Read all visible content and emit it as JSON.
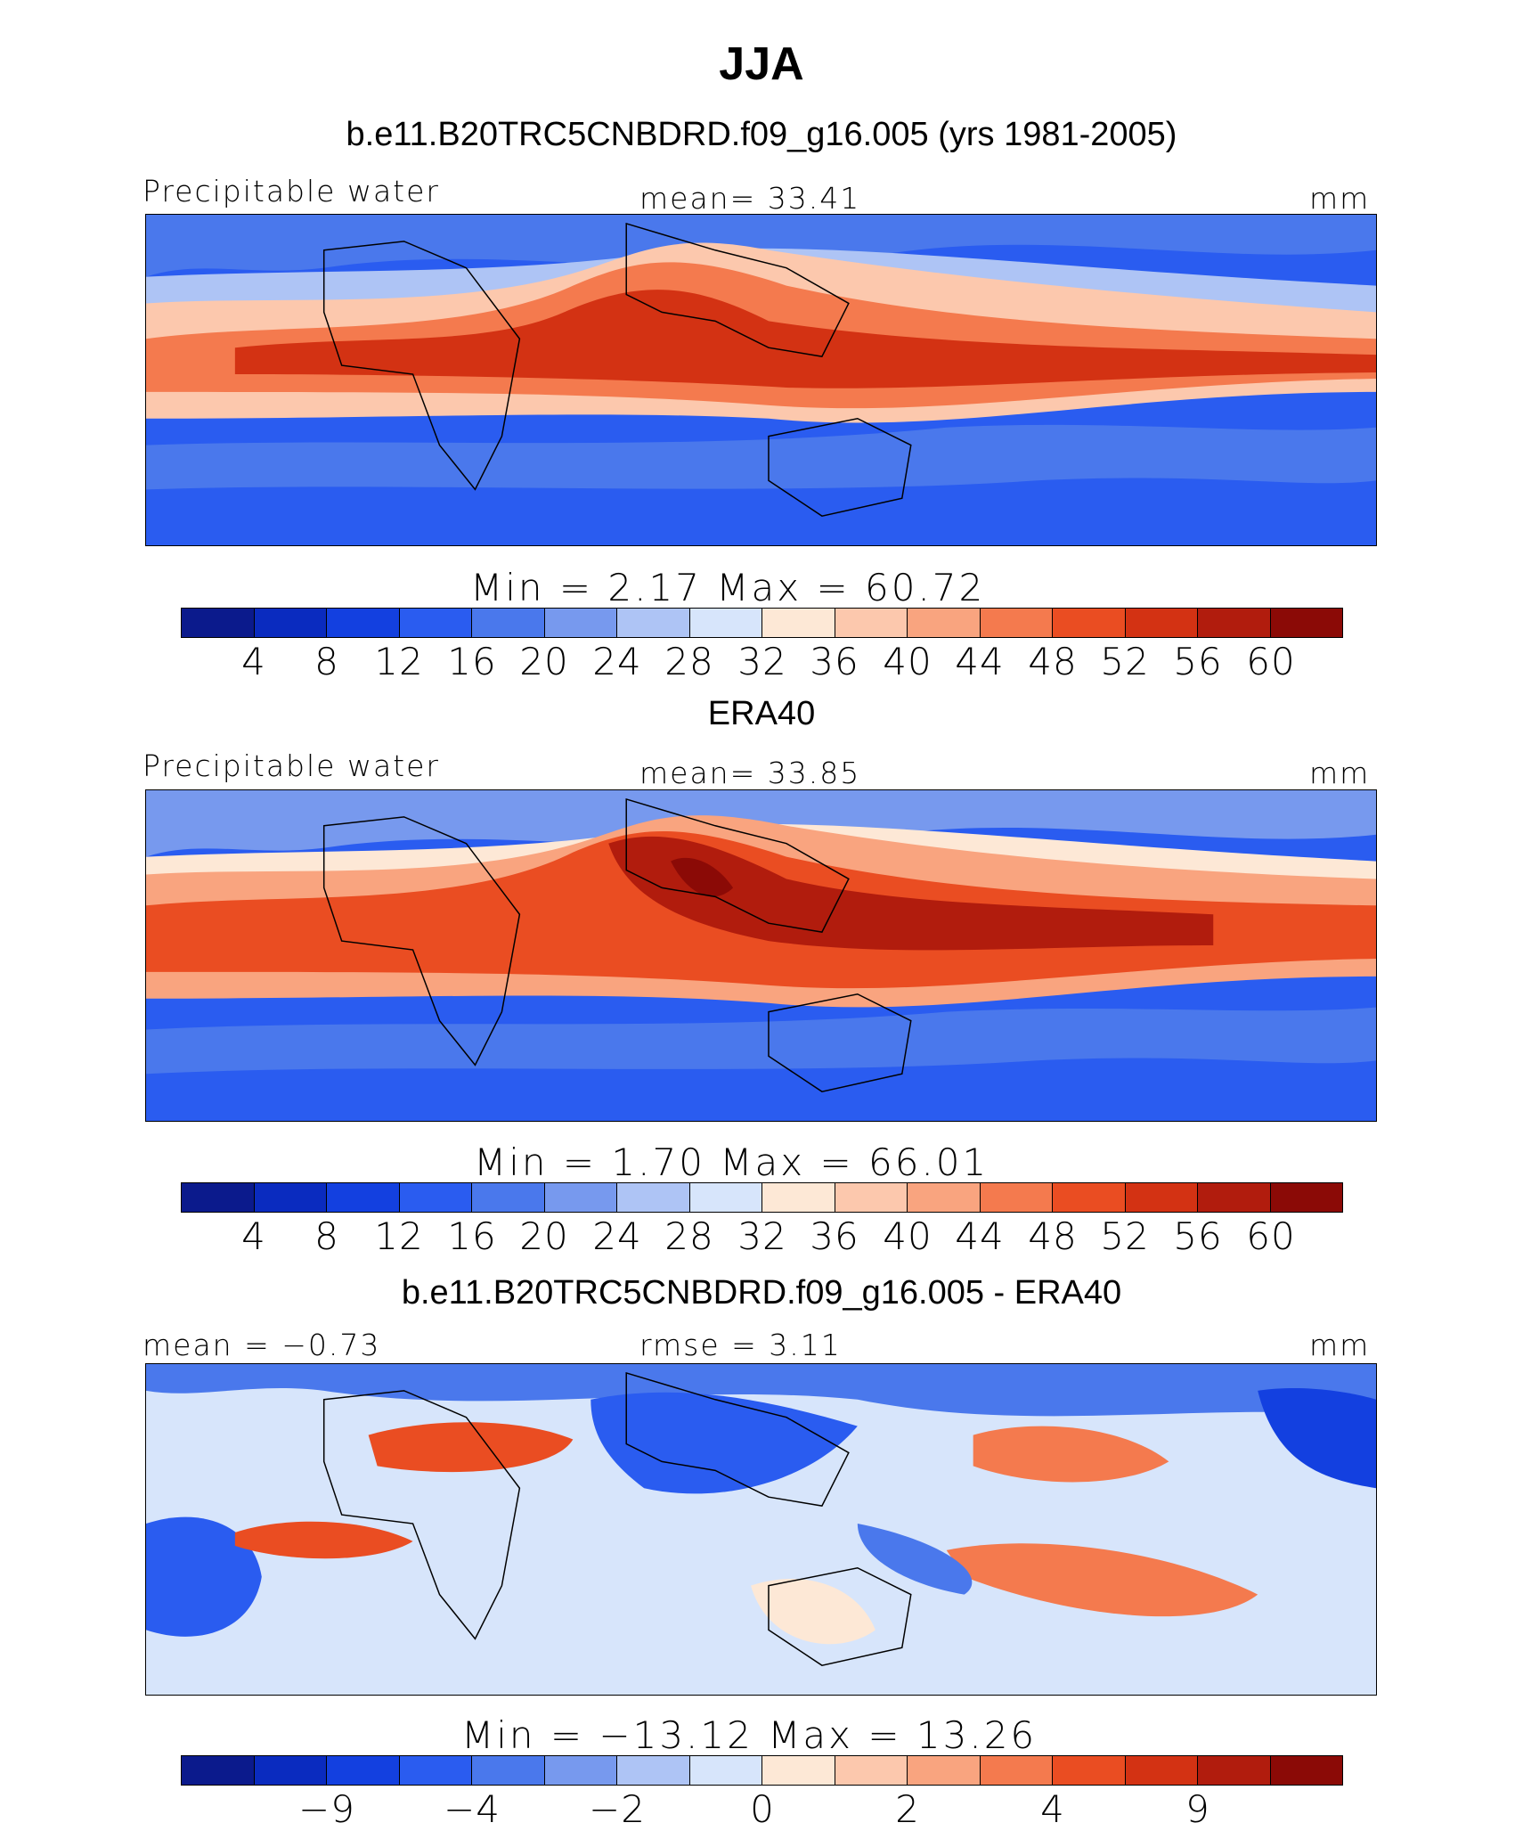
{
  "title": "JJA",
  "colors": {
    "palette": [
      "#0b1a8c",
      "#0a2bbf",
      "#1340e0",
      "#2a5cf0",
      "#4a78ec",
      "#7799ee",
      "#aec4f5",
      "#d7e5fb",
      "#fde8d6",
      "#fcc8ad",
      "#f9a47f",
      "#f47a4e",
      "#ea4d22",
      "#d33213",
      "#b11c0d",
      "#8b0a06"
    ],
    "coastline": "#000000",
    "background": "#ffffff"
  },
  "panels": [
    {
      "heading": "b.e11.B20TRC5CNBDRD.f09_g16.005 (yrs 1981-2005)",
      "left_label": "Precipitable water",
      "center_label": "mean=   33.41",
      "right_label": "mm",
      "minmax": "Min  =      2.17  Max  =     60.72",
      "ticks": [
        "4",
        "8",
        "12",
        "16",
        "20",
        "24",
        "28",
        "32",
        "36",
        "40",
        "44",
        "48",
        "52",
        "56",
        "60"
      ],
      "map_type": "absolute"
    },
    {
      "heading": "ERA40",
      "left_label": "Precipitable water",
      "center_label": "mean=   33.85",
      "right_label": "mm",
      "minmax": "Min  =      1.70  Max  =     66.01",
      "ticks": [
        "4",
        "8",
        "12",
        "16",
        "20",
        "24",
        "28",
        "32",
        "36",
        "40",
        "44",
        "48",
        "52",
        "56",
        "60"
      ],
      "map_type": "absolute"
    },
    {
      "heading": "b.e11.B20TRC5CNBDRD.f09_g16.005 - ERA40",
      "left_label": "mean =   −0.73",
      "center_label": "rmse =     3.11",
      "right_label": "mm",
      "minmax": "Min  =  −13.12  Max  =     13.26",
      "ticks": [
        "−9",
        "−4",
        "−2",
        "0",
        "2",
        "4",
        "9"
      ],
      "map_type": "difference"
    }
  ]
}
